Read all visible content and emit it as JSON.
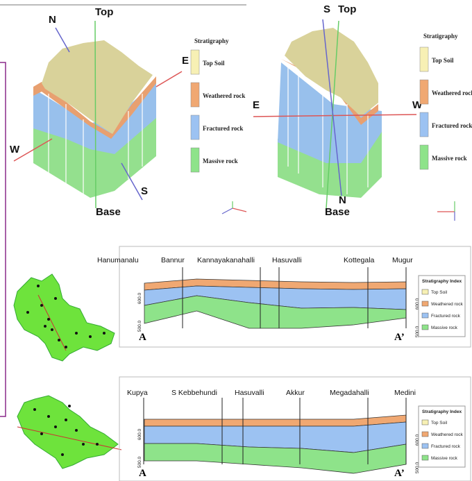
{
  "models": [
    {
      "labels": {
        "north": "N",
        "top": "Top",
        "east": "E",
        "west": "W",
        "south": "S",
        "base": "Base"
      },
      "legend": {
        "title": "Stratigraphy",
        "items": [
          "Top Soil",
          "Weathered rock",
          "Fractured rock",
          "Massive rock"
        ]
      }
    },
    {
      "labels": {
        "south": "S",
        "top": "Top",
        "east": "E",
        "west": "W",
        "north": "N",
        "base": "Base"
      },
      "legend": {
        "title": "Stratigraphy",
        "items": [
          "Top Soil",
          "Weathered rock",
          "Fractured rock",
          "Massive rock"
        ]
      }
    }
  ],
  "sections": [
    {
      "places": [
        "Hanumanalu",
        "Bannur",
        "Kannayakanahalli",
        "Hasuvalli",
        "Kottegala",
        "Mugur"
      ],
      "elevations": [
        "600.0",
        "500.0"
      ],
      "start": "A",
      "end": "A’",
      "legend": {
        "title": "Stratigraphy Index",
        "items": [
          "Top Soil",
          "Weathered rock",
          "Fractured rock",
          "Massive rock"
        ]
      }
    },
    {
      "places": [
        "Kupya",
        "S Kebbehundi",
        "Hasuvalli",
        "Akkur",
        "Megadahalli",
        "Medini"
      ],
      "elevations": [
        "600.0",
        "500.0"
      ],
      "start": "A",
      "end": "A’",
      "legend": {
        "title": "Stratigraphy Index",
        "items": [
          "Top Soil",
          "Weathered rock",
          "Fractured rock",
          "Massive rock"
        ]
      }
    }
  ]
}
